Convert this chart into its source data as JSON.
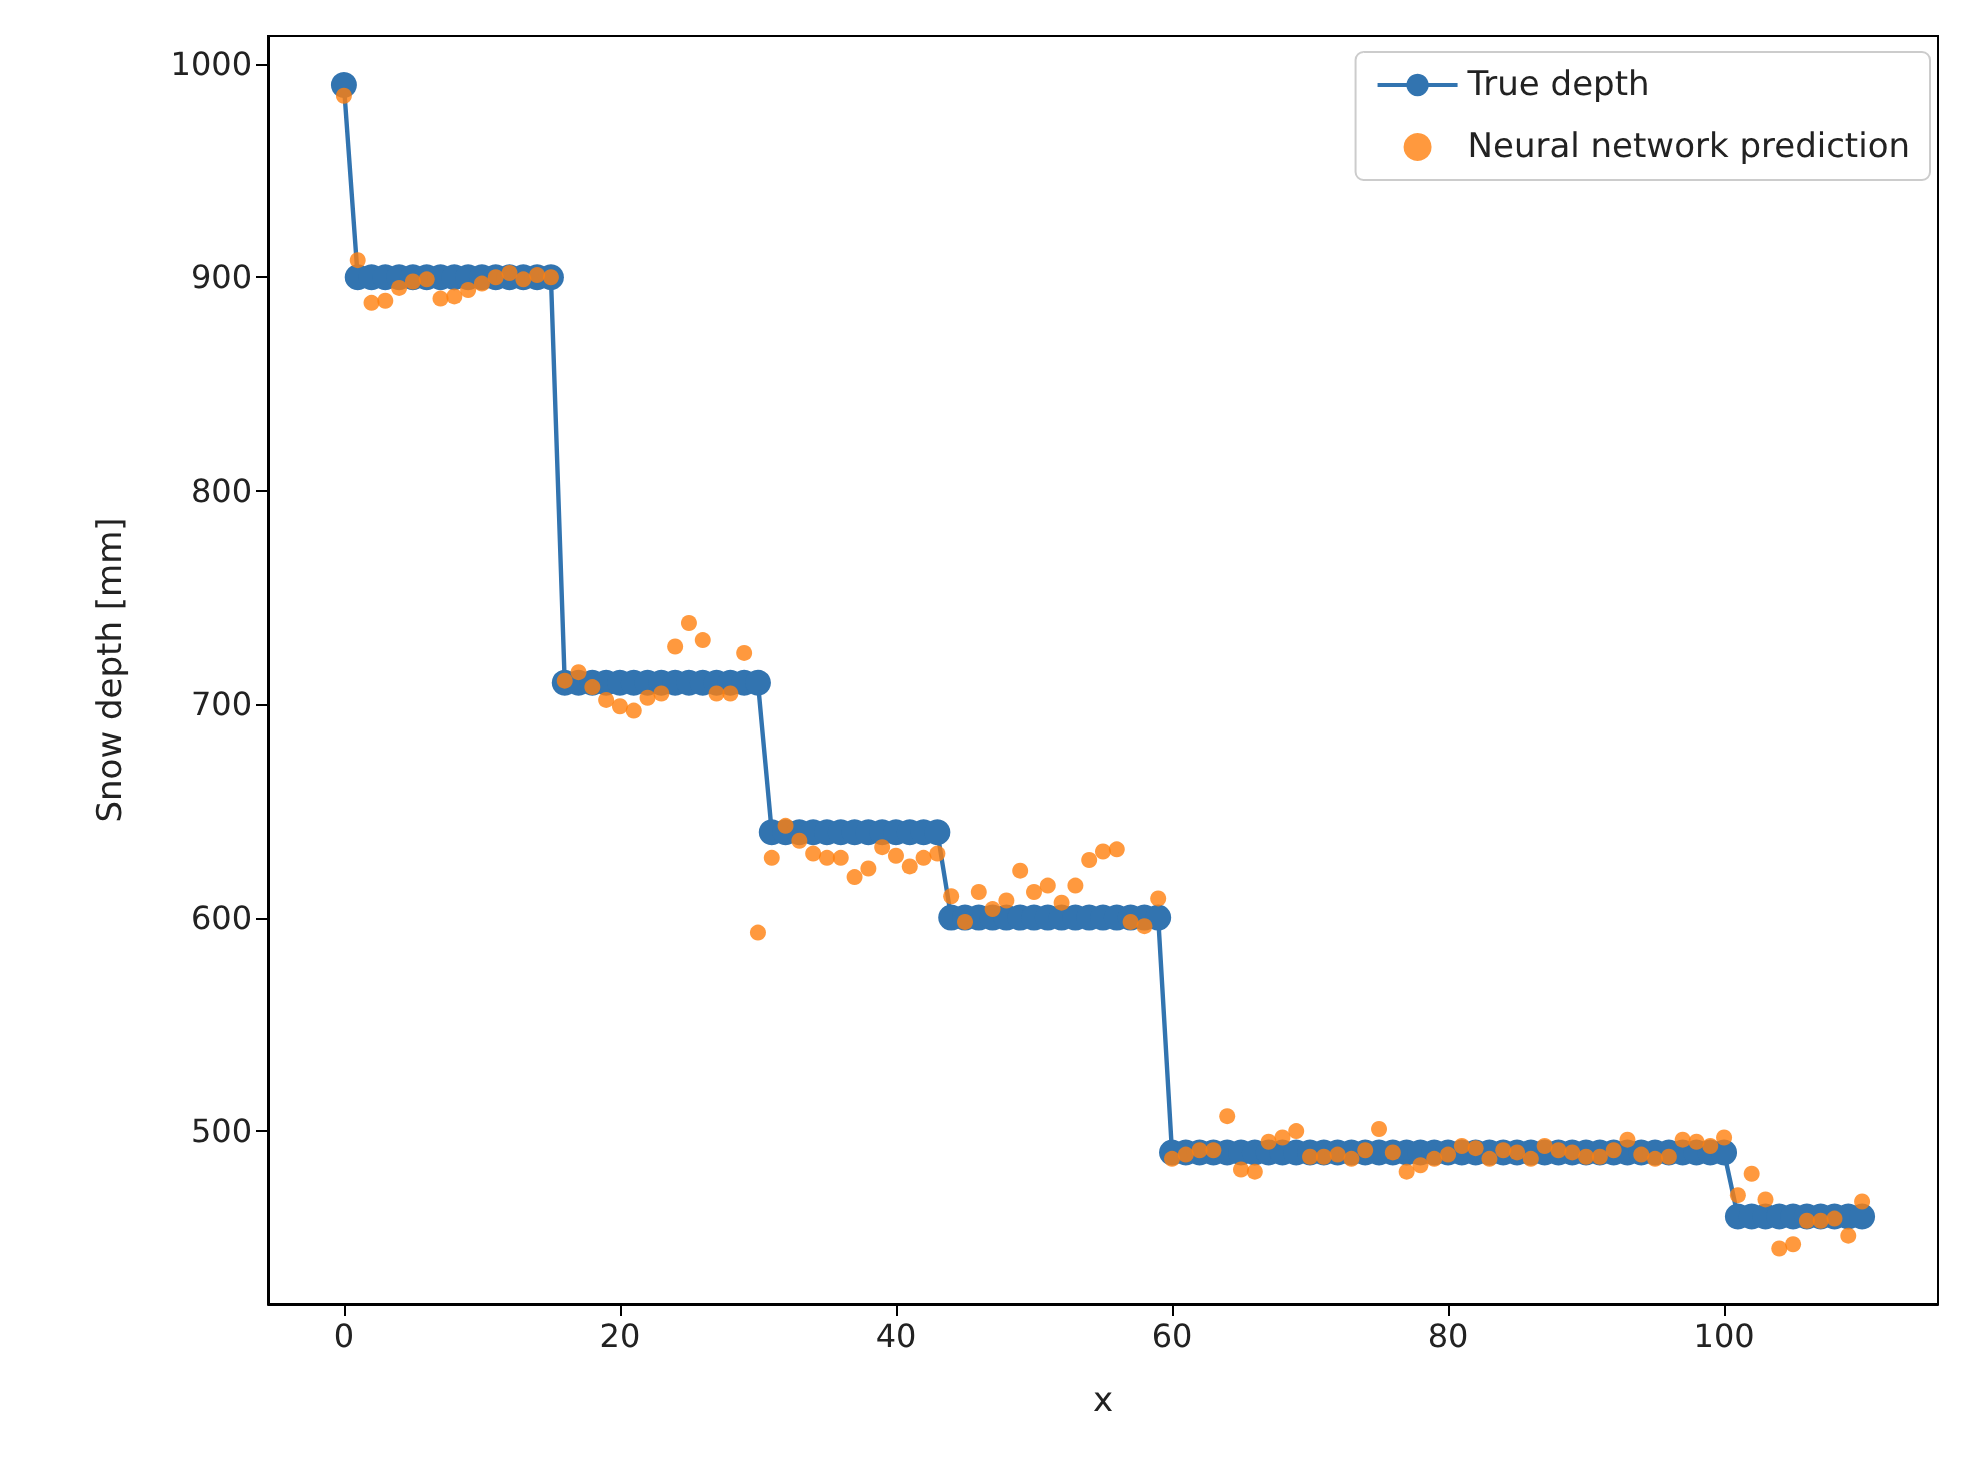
{
  "chart_data": {
    "type": "line",
    "xlabel": "x",
    "ylabel": "Snow depth [mm]",
    "xlim": [
      -5.5,
      115.5
    ],
    "ylim": [
      419,
      1013
    ],
    "xticks": [
      0,
      20,
      40,
      60,
      80,
      100
    ],
    "yticks": [
      500,
      600,
      700,
      800,
      900,
      1000
    ],
    "legend": "top right",
    "grid": false,
    "x": [
      0,
      1,
      2,
      3,
      4,
      5,
      6,
      7,
      8,
      9,
      10,
      11,
      12,
      13,
      14,
      15,
      16,
      17,
      18,
      19,
      20,
      21,
      22,
      23,
      24,
      25,
      26,
      27,
      28,
      29,
      30,
      31,
      32,
      33,
      34,
      35,
      36,
      37,
      38,
      39,
      40,
      41,
      42,
      43,
      44,
      45,
      46,
      47,
      48,
      49,
      50,
      51,
      52,
      53,
      54,
      55,
      56,
      57,
      58,
      59,
      60,
      61,
      62,
      63,
      64,
      65,
      66,
      67,
      68,
      69,
      70,
      71,
      72,
      73,
      74,
      75,
      76,
      77,
      78,
      79,
      80,
      81,
      82,
      83,
      84,
      85,
      86,
      87,
      88,
      89,
      90,
      91,
      92,
      93,
      94,
      95,
      96,
      97,
      98,
      99,
      100,
      101,
      102,
      103,
      104,
      105,
      106,
      107,
      108,
      109,
      110
    ],
    "series": [
      {
        "name": "True depth",
        "marker": "circle",
        "color": "#3274b0",
        "values": [
          990,
          900,
          900,
          900,
          900,
          900,
          900,
          900,
          900,
          900,
          900,
          900,
          900,
          900,
          900,
          900,
          710,
          710,
          710,
          710,
          710,
          710,
          710,
          710,
          710,
          710,
          710,
          710,
          710,
          710,
          710,
          640,
          640,
          640,
          640,
          640,
          640,
          640,
          640,
          640,
          640,
          640,
          640,
          640,
          600,
          600,
          600,
          600,
          600,
          600,
          600,
          600,
          600,
          600,
          600,
          600,
          600,
          600,
          600,
          600,
          490,
          490,
          490,
          490,
          490,
          490,
          490,
          490,
          490,
          490,
          490,
          490,
          490,
          490,
          490,
          490,
          490,
          490,
          490,
          490,
          490,
          490,
          490,
          490,
          490,
          490,
          490,
          490,
          490,
          490,
          490,
          490,
          490,
          490,
          490,
          490,
          490,
          490,
          490,
          490,
          490,
          460,
          460,
          460,
          460,
          460,
          460,
          460,
          460,
          460,
          460
        ]
      },
      {
        "name": "Neural network prediction",
        "type": "scatter",
        "marker": "circle",
        "color": "#ff7f0e",
        "values": [
          985,
          908,
          888,
          889,
          895,
          898,
          899,
          890,
          891,
          894,
          897,
          900,
          902,
          899,
          901,
          900,
          711,
          715,
          708,
          702,
          699,
          697,
          703,
          705,
          727,
          738,
          730,
          705,
          705,
          724,
          593,
          628,
          643,
          636,
          630,
          628,
          628,
          619,
          623,
          633,
          629,
          624,
          628,
          630,
          610,
          598,
          612,
          604,
          608,
          622,
          612,
          615,
          607,
          615,
          627,
          631,
          632,
          598,
          596,
          609,
          487,
          489,
          491,
          491,
          507,
          482,
          481,
          495,
          497,
          500,
          488,
          488,
          489,
          487,
          491,
          501,
          490,
          481,
          484,
          487,
          489,
          493,
          492,
          487,
          491,
          490,
          487,
          493,
          491,
          490,
          488,
          488,
          491,
          496,
          489,
          487,
          488,
          496,
          495,
          493,
          497,
          470,
          480,
          468,
          445,
          447,
          458,
          458,
          459,
          451,
          467
        ]
      }
    ]
  }
}
